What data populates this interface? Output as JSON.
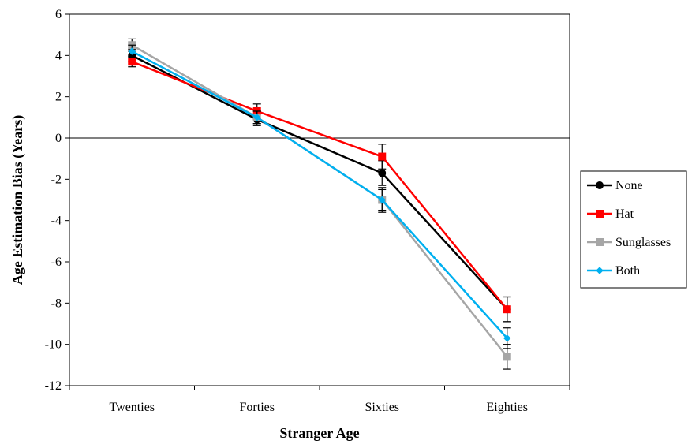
{
  "chart_data": {
    "type": "line",
    "title": "",
    "xlabel": "Stranger Age",
    "ylabel": "Age Estimation Bias (Years)",
    "categories": [
      "Twenties",
      "Forties",
      "Sixties",
      "Eighties"
    ],
    "ylim": [
      -12,
      6
    ],
    "yticks": [
      6,
      4,
      2,
      0,
      -2,
      -4,
      -6,
      -8,
      -10,
      -12
    ],
    "grid": false,
    "reference_line_y": 0,
    "legend_position": "right",
    "series": [
      {
        "name": "None",
        "color": "#000000",
        "marker": "circle",
        "values": [
          4.0,
          0.9,
          -1.7,
          -8.3
        ],
        "errors": [
          0.3,
          0.3,
          0.6,
          0.6
        ]
      },
      {
        "name": "Hat",
        "color": "#ff0000",
        "marker": "square",
        "values": [
          3.7,
          1.3,
          -0.9,
          -8.3
        ],
        "errors": [
          0.25,
          0.35,
          0.6,
          0.6
        ]
      },
      {
        "name": "Sunglasses",
        "color": "#a6a6a6",
        "marker": "square",
        "values": [
          4.5,
          1.0,
          -3.0,
          -10.6
        ],
        "errors": [
          0.3,
          0.3,
          0.6,
          0.6
        ]
      },
      {
        "name": "Both",
        "color": "#00b0f0",
        "marker": "diamond",
        "values": [
          4.2,
          1.0,
          -3.0,
          -9.7
        ],
        "errors": [
          0.3,
          0.3,
          0.5,
          0.5
        ]
      }
    ]
  }
}
